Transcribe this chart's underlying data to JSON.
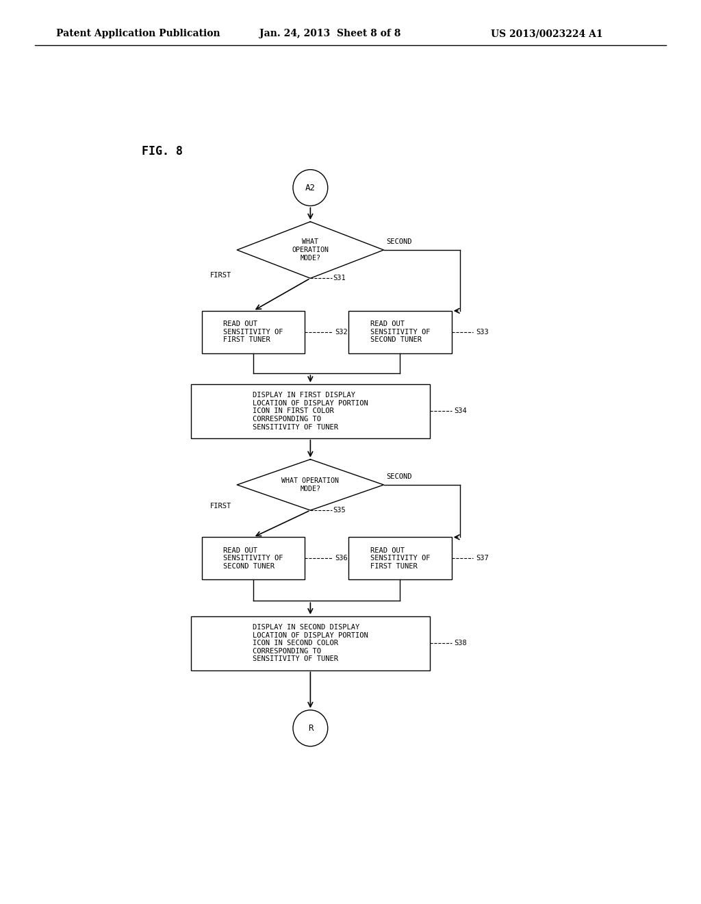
{
  "bg_color": "#ffffff",
  "line_color": "#000000",
  "header_left": "Patent Application Publication",
  "header_mid": "Jan. 24, 2013  Sheet 8 of 8",
  "header_right": "US 2013/0023224 A1",
  "fig_label": "FIG. 8"
}
